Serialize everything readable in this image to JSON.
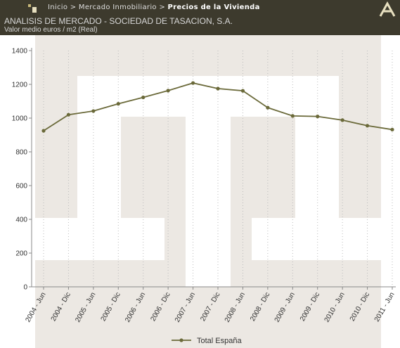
{
  "header": {
    "breadcrumb": [
      "Inicio",
      "Mercado Inmobiliario",
      "Precios de la Vivienda"
    ],
    "separator": ">"
  },
  "chart_data": {
    "type": "line",
    "title": "ANALISIS DE MERCADO - SOCIEDAD DE TASACION, S.A.",
    "subtitle": "Valor medio euros / m2 (Real)",
    "categories": [
      "2004 - Jun",
      "2004 - Dic",
      "2005 - Jun",
      "2005 - Dic",
      "2006 - Jun",
      "2006 - Dic",
      "2007 - Jun",
      "2007 - Dic",
      "2008 - Jun",
      "2008 - Dic",
      "2009 - Jun",
      "2009 - Dic",
      "2010 - Jun",
      "2010 - Dic",
      "2011 - Jun"
    ],
    "series": [
      {
        "name": "Total España",
        "color": "#6b6a3a",
        "values": [
          925,
          1020,
          1042,
          1085,
          1123,
          1163,
          1208,
          1175,
          1162,
          1062,
          1013,
          1010,
          988,
          955,
          932
        ]
      }
    ],
    "ylim": [
      0,
      1400
    ],
    "yticks": [
      0,
      200,
      400,
      600,
      800,
      1000,
      1200,
      1400
    ],
    "grid": true,
    "legend": "bottom"
  }
}
